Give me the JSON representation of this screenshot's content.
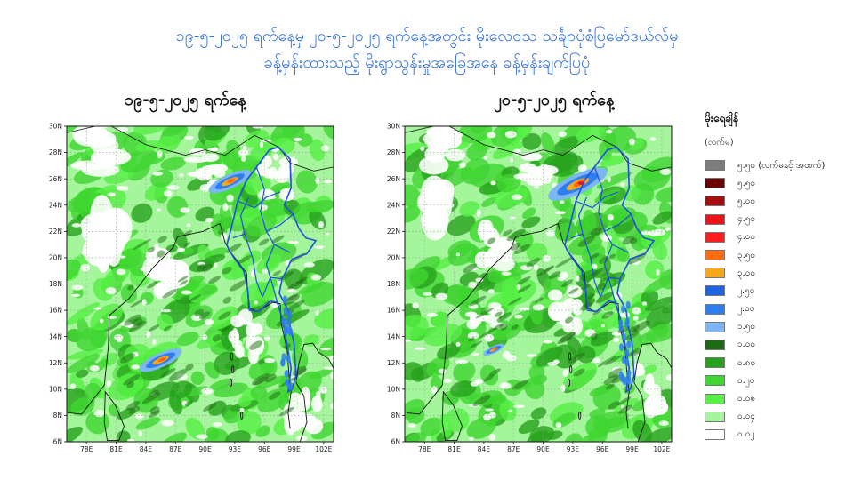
{
  "header": {
    "line1": "၁၉-၅-၂၀၂၅ ရက်နေ့မှ ၂၀-၅-၂၀၂၅ ရက်နေ့အတွင်း မိုးလေဝသ သင်္ချာပုံစံပြမော်ဒယ်လ်မှ",
    "line2": "ခန့်မှန်းထားသည့် မိုးရွာသွန်းမှုအခြေအနေ ခန့်မှန်းချက်ပြပုံ"
  },
  "maps": [
    {
      "date_label": "၁၉-၅-၂၀၂၅ ရက်နေ့",
      "variant": 1
    },
    {
      "date_label": "၂၀-၅-၂၀၂၅ ရက်နေ့",
      "variant": 2
    }
  ],
  "axes": {
    "lat_labels": [
      "30N",
      "28N",
      "26N",
      "24N",
      "22N",
      "20N",
      "18N",
      "16N",
      "14N",
      "12N",
      "10N",
      "8N",
      "6N"
    ],
    "lon_labels": [
      "78E",
      "81E",
      "84E",
      "87E",
      "90E",
      "93E",
      "96E",
      "99E",
      "102E"
    ]
  },
  "legend": {
    "title": "မိုးရေချိန်",
    "unit": "(လက်မ)",
    "items": [
      {
        "label": "၅.၅၀ (လက်မနှင့် အထက်)",
        "color": "#7d7d7d"
      },
      {
        "label": "၅.၅၀",
        "color": "#6b0000"
      },
      {
        "label": "၅.၀၀",
        "color": "#a50f0f"
      },
      {
        "label": "၄.၅၀",
        "color": "#e8161a"
      },
      {
        "label": "၄.၀၀",
        "color": "#ff1e1e"
      },
      {
        "label": "၃.၅၀",
        "color": "#ff6b0d"
      },
      {
        "label": "၃.၀၀",
        "color": "#f7a81b"
      },
      {
        "label": "၂.၅၀",
        "color": "#1f64e0"
      },
      {
        "label": "၂.၀၀",
        "color": "#2f7ef0"
      },
      {
        "label": "၁.၅၀",
        "color": "#7db6f4"
      },
      {
        "label": "၁.၀၀",
        "color": "#1c6b12"
      },
      {
        "label": "၀.၈၀",
        "color": "#27a11d"
      },
      {
        "label": "၀.၂၀",
        "color": "#3ed630"
      },
      {
        "label": "၀.၀၈",
        "color": "#55f043"
      },
      {
        "label": "၀.၀၄",
        "color": "#a4f59b"
      },
      {
        "label": "၀.၀၂",
        "color": "#ffffff"
      }
    ]
  }
}
